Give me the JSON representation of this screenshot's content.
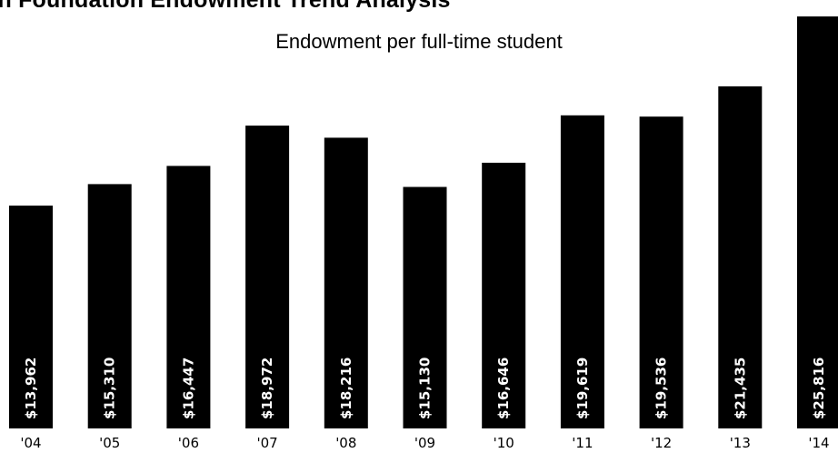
{
  "header": {
    "title": "on Foundation Endowment Trend Analysis"
  },
  "chart_data": {
    "type": "bar",
    "title": "",
    "subtitle": "Endowment per full-time student",
    "xlabel": "",
    "ylabel": "",
    "categories": [
      "'04",
      "'05",
      "'06",
      "'07",
      "'08",
      "'09",
      "'10",
      "'11",
      "'12",
      "'13",
      "'14"
    ],
    "values": [
      13962,
      15310,
      16447,
      18972,
      18216,
      15130,
      16646,
      19619,
      19536,
      21435,
      25816
    ],
    "value_labels": [
      "$13,962",
      "$15,310",
      "$16,447",
      "$18,972",
      "$18,216",
      "$15,130",
      "$16,646",
      "$19,619",
      "$19,536",
      "$21,435",
      "$25,816"
    ],
    "ylim": [
      0,
      27500
    ],
    "grid": false,
    "legend": "none",
    "colors": {
      "bar": "#000000",
      "bar_label": "#ffffff",
      "text": "#000000"
    }
  }
}
